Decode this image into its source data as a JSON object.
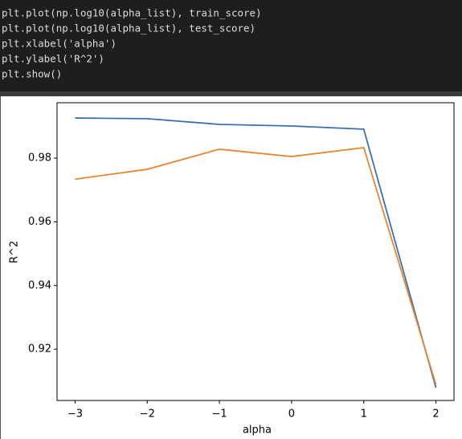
{
  "code": {
    "lines": [
      "plt.plot(np.log10(alpha_list), train_score)",
      "plt.plot(np.log10(alpha_list), test_score)",
      "plt.xlabel('alpha')",
      "plt.ylabel('R^2')",
      "plt.show()"
    ]
  },
  "chart_data": {
    "type": "line",
    "x_label": "alpha",
    "y_label": "R^2",
    "x": [
      -3,
      -2,
      -1,
      0,
      1,
      2
    ],
    "series": [
      {
        "color": "#3a6fb0",
        "values": [
          0.9926,
          0.9924,
          0.9906,
          0.9901,
          0.9891,
          0.9079
        ]
      },
      {
        "color": "#e8862f",
        "values": [
          0.9734,
          0.9765,
          0.9828,
          0.9805,
          0.9833,
          0.9089
        ]
      }
    ],
    "xlim": [
      -3.25,
      2.25
    ],
    "xticks": [
      {
        "value": -3,
        "label": "−3"
      },
      {
        "value": -2,
        "label": "−2"
      },
      {
        "value": -1,
        "label": "−1"
      },
      0,
      1,
      2
    ],
    "ylim": [
      0.9039,
      0.9974
    ],
    "yticks": [
      0.92,
      0.94,
      0.96,
      0.98
    ]
  }
}
